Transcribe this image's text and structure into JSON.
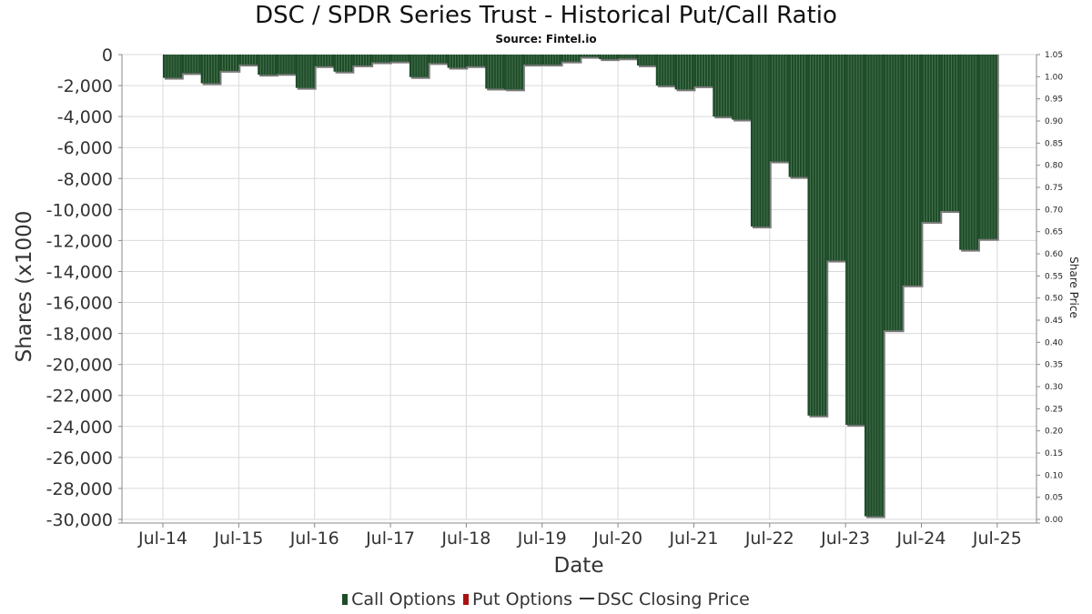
{
  "title": "DSC / SPDR Series Trust - Historical Put/Call Ratio",
  "subtitle": "Source: Fintel.io",
  "legend": {
    "call": "Call Options",
    "put": "Put Options",
    "price": "DSC Closing Price"
  },
  "colors": {
    "call": "#1d4d28",
    "put": "#aa1111",
    "price": "#333333",
    "grid": "#d9d9d9"
  },
  "chart_data": {
    "type": "bar",
    "title": "DSC / SPDR Series Trust - Historical Put/Call Ratio",
    "xlabel": "Date",
    "ylabel": "Shares (x1000",
    "y2label": "Share Price",
    "ylim": [
      -30000,
      0
    ],
    "y2lim": [
      0.0,
      1.05
    ],
    "yticks": [
      0,
      -2000,
      -4000,
      -6000,
      -8000,
      -10000,
      -12000,
      -14000,
      -16000,
      -18000,
      -20000,
      -22000,
      -24000,
      -26000,
      -28000,
      -30000
    ],
    "ytick_labels": [
      "0",
      "-2,000",
      "-4,000",
      "-6,000",
      "-8,000",
      "-10,000",
      "-12,000",
      "-14,000",
      "-16,000",
      "-18,000",
      "-20,000",
      "-22,000",
      "-24,000",
      "-26,000",
      "-28,000",
      "-30,000"
    ],
    "y2tick_labels": [
      "1.05",
      "1.00",
      "0.95",
      "0.90",
      "0.85",
      "0.80",
      "0.75",
      "0.70",
      "0.65",
      "0.60",
      "0.55",
      "0.50",
      "0.45",
      "0.40",
      "0.35",
      "0.30",
      "0.25",
      "0.20",
      "0.15",
      "0.10",
      "0.05",
      "0.00"
    ],
    "xtick_labels": [
      "Jul-14",
      "Jul-15",
      "Jul-16",
      "Jul-17",
      "Jul-18",
      "Jul-19",
      "Jul-20",
      "Jul-21",
      "Jul-22",
      "Jul-23",
      "Jul-24",
      "Jul-25"
    ],
    "grid": true,
    "legend_position": "bottom",
    "series": [
      {
        "name": "Call Options",
        "x": [
          "2014-07",
          "2014-10",
          "2015-01",
          "2015-04",
          "2015-07",
          "2015-10",
          "2016-01",
          "2016-04",
          "2016-07",
          "2016-10",
          "2017-01",
          "2017-04",
          "2017-07",
          "2017-10",
          "2018-01",
          "2018-04",
          "2018-07",
          "2018-10",
          "2019-01",
          "2019-04",
          "2019-07",
          "2019-10",
          "2020-01",
          "2020-04",
          "2020-07",
          "2020-10",
          "2021-01",
          "2021-04",
          "2021-07",
          "2021-10",
          "2022-01",
          "2022-04",
          "2022-07",
          "2022-10",
          "2023-01",
          "2023-04",
          "2023-07",
          "2023-10",
          "2024-01",
          "2024-04",
          "2024-07",
          "2024-10",
          "2025-01",
          "2025-04"
        ],
        "values": [
          -1500,
          -1200,
          -1850,
          -1050,
          -650,
          -1300,
          -1250,
          -2150,
          -750,
          -1100,
          -700,
          -500,
          -450,
          -1450,
          -550,
          -850,
          -750,
          -2200,
          -2250,
          -650,
          -650,
          -450,
          -150,
          -300,
          -250,
          -700,
          -2000,
          -2250,
          -2050,
          -4000,
          -4200,
          -11100,
          -6900,
          -7900,
          -23300,
          -13300,
          -23900,
          -29800,
          -17800,
          -14900,
          -10800,
          -10100,
          -12600,
          -11900
        ]
      },
      {
        "name": "Put Options",
        "values": []
      }
    ]
  }
}
